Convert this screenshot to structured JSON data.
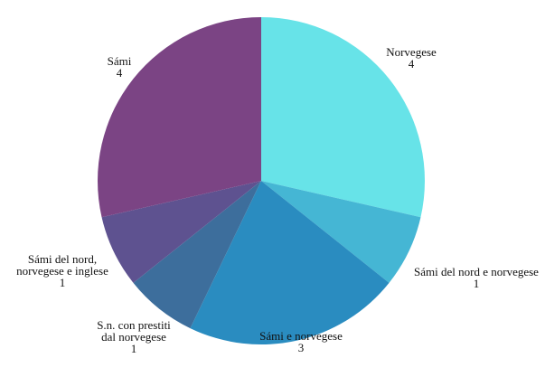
{
  "chart_data": {
    "type": "pie",
    "title": "",
    "start": "top",
    "direction": "clockwise",
    "slices": [
      {
        "label": "Norvegese",
        "value": 4,
        "value_label": "4",
        "color": "#67E3E8"
      },
      {
        "label": "Sámi del nord e norvegese",
        "value": 1,
        "value_label": "1",
        "color": "#45B6D4"
      },
      {
        "label": "Sámi e norvegese",
        "value": 3,
        "value_label": "3",
        "color": "#2A8CC0"
      },
      {
        "label": "S.n. con prestiti dal norvegese",
        "value": 1,
        "value_label": "1",
        "color": "#3D6E9C"
      },
      {
        "label": "Sámi del nord, norvegese e inglese",
        "value": 1,
        "value_label": "1",
        "color": "#5E5290"
      },
      {
        "label": "Sámi",
        "value": 4,
        "value_label": "4",
        "color": "#7B4484"
      }
    ]
  }
}
